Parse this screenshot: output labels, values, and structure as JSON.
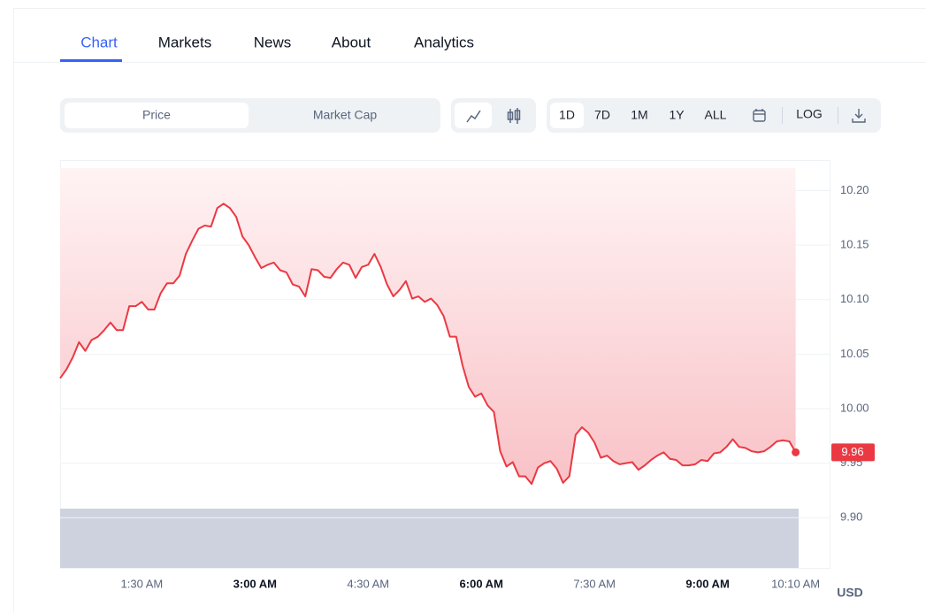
{
  "tabs": [
    "Chart",
    "Markets",
    "News",
    "About",
    "Analytics"
  ],
  "toolbar": {
    "metric": [
      "Price",
      "Market Cap"
    ],
    "ranges": [
      "1D",
      "7D",
      "1M",
      "1Y",
      "ALL"
    ],
    "log": "LOG"
  },
  "chart_data": {
    "type": "line",
    "color": "#ea3943",
    "grid": true,
    "currency": "USD",
    "x": [
      25,
      30,
      35,
      40,
      45,
      50,
      55,
      60,
      65,
      70,
      75,
      80,
      85,
      90,
      95,
      100,
      105,
      110,
      115,
      120,
      125,
      130,
      135,
      140,
      145,
      150,
      155,
      160,
      165,
      170,
      175,
      180,
      185,
      190,
      195,
      200,
      205,
      210,
      215,
      220,
      225,
      230,
      235,
      240,
      245,
      250,
      255,
      260,
      265,
      270,
      275,
      280,
      285,
      290,
      295,
      300,
      305,
      310,
      315,
      320,
      325,
      330,
      335,
      340,
      345,
      350,
      355,
      360,
      365,
      370,
      375,
      380,
      385,
      390,
      395,
      400,
      405,
      410,
      415,
      420,
      425,
      430,
      435,
      440,
      445,
      450,
      455,
      460,
      465,
      470,
      475,
      480,
      485,
      490,
      495,
      500,
      505,
      510,
      515,
      520,
      525,
      530,
      535,
      540,
      545,
      550,
      555,
      560,
      565,
      570,
      575,
      580,
      585,
      590,
      595,
      600,
      605,
      610
    ],
    "values": [
      10.028,
      10.036,
      10.047,
      10.061,
      10.053,
      10.063,
      10.066,
      10.072,
      10.079,
      10.072,
      10.072,
      10.094,
      10.094,
      10.098,
      10.091,
      10.091,
      10.106,
      10.115,
      10.115,
      10.122,
      10.142,
      10.154,
      10.165,
      10.168,
      10.167,
      10.184,
      10.188,
      10.184,
      10.176,
      10.158,
      10.15,
      10.139,
      10.129,
      10.132,
      10.134,
      10.127,
      10.125,
      10.114,
      10.112,
      10.103,
      10.128,
      10.127,
      10.121,
      10.12,
      10.128,
      10.134,
      10.132,
      10.12,
      10.13,
      10.132,
      10.142,
      10.13,
      10.114,
      10.103,
      10.109,
      10.117,
      10.101,
      10.103,
      10.098,
      10.101,
      10.095,
      10.085,
      10.066,
      10.066,
      10.04,
      10.02,
      10.011,
      10.014,
      10.003,
      9.997,
      9.961,
      9.947,
      9.951,
      9.938,
      9.938,
      9.931,
      9.946,
      9.95,
      9.952,
      9.945,
      9.932,
      9.938,
      9.976,
      9.983,
      9.978,
      9.969,
      9.955,
      9.957,
      9.952,
      9.949,
      9.95,
      9.951,
      9.944,
      9.948,
      9.953,
      9.957,
      9.96,
      9.954,
      9.953,
      9.948,
      9.948,
      9.949,
      9.953,
      9.952,
      9.959,
      9.96,
      9.965,
      9.972,
      9.965,
      9.964,
      9.961,
      9.96,
      9.961,
      9.965,
      9.97,
      9.971,
      9.97,
      9.96
    ],
    "xlim": [
      25,
      637
    ],
    "xticks": [
      {
        "value": 90,
        "label": "1:30 AM"
      },
      {
        "value": 180,
        "label": "3:00 AM"
      },
      {
        "value": 270,
        "label": "4:30 AM"
      },
      {
        "value": 360,
        "label": "6:00 AM"
      },
      {
        "value": 450,
        "label": "7:30 AM"
      },
      {
        "value": 540,
        "label": "9:00 AM"
      },
      {
        "value": 610,
        "label": "10:10 AM"
      }
    ],
    "ylim": [
      9.854,
      10.228
    ],
    "yticks": [
      {
        "value": 9.9,
        "label": "9.90"
      },
      9.95,
      {
        "value": 10,
        "label": "10.00"
      },
      10.05,
      {
        "value": 10.1,
        "label": "10.10"
      },
      10.15,
      {
        "value": 10.2,
        "label": "10.20"
      }
    ]
  }
}
